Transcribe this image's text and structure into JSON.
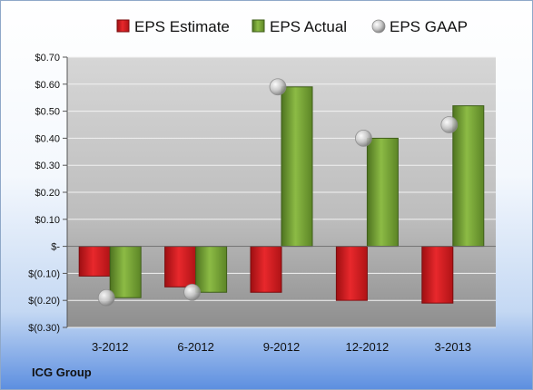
{
  "chart_data": {
    "type": "bar",
    "categories": [
      "3-2012",
      "6-2012",
      "9-2012",
      "12-2012",
      "3-2013"
    ],
    "series": [
      {
        "name": "EPS Estimate",
        "kind": "bar",
        "color": "#d7191c",
        "values": [
          -0.11,
          -0.15,
          -0.17,
          -0.2,
          -0.21
        ]
      },
      {
        "name": "EPS Actual",
        "kind": "bar",
        "color": "#6f9a2d",
        "values": [
          -0.19,
          -0.17,
          0.59,
          0.4,
          0.52
        ]
      },
      {
        "name": "EPS GAAP",
        "kind": "marker",
        "color": "#b8b8b8",
        "values": [
          -0.19,
          -0.17,
          0.59,
          0.4,
          0.45
        ]
      }
    ],
    "ylim": [
      -0.3,
      0.7
    ],
    "yticks": [
      0.7,
      0.6,
      0.5,
      0.4,
      0.3,
      0.2,
      0.1,
      0.0,
      -0.1,
      -0.2,
      -0.3
    ],
    "ytick_labels": [
      "$0.70",
      "$0.60",
      "$0.50",
      "$0.40",
      "$0.30",
      "$0.20",
      "$0.10",
      "$-",
      "$(0.10)",
      "$(0.20)",
      "$(0.30)"
    ],
    "legend_position": "top",
    "grid": true,
    "title": "",
    "xlabel": "",
    "ylabel": ""
  },
  "footer": {
    "company": "ICG Group"
  }
}
